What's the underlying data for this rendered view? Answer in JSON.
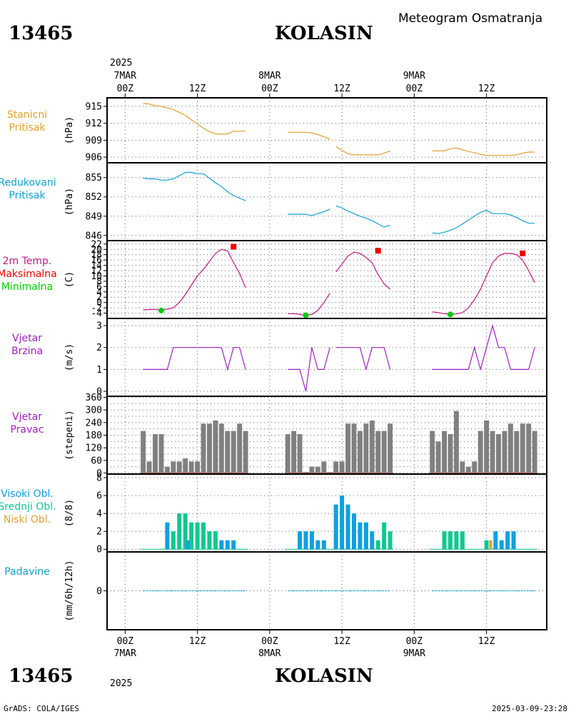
{
  "header": {
    "station_id": "13465",
    "station_name": "KOLASIN",
    "subtitle": "Meteogram Osmatranja"
  },
  "footer": {
    "station_id": "13465",
    "station_name": "KOLASIN",
    "credit": "GrADS: COLA/IGES",
    "timestamp": "2025-03-09-23:28"
  },
  "time_axis": {
    "top_year": "2025",
    "bottom_year": "2025",
    "ticks": [
      {
        "hour": 0,
        "hour_label": "00Z",
        "date_label": "7MAR"
      },
      {
        "hour": 12,
        "hour_label": "12Z",
        "date_label": ""
      },
      {
        "hour": 24,
        "hour_label": "00Z",
        "date_label": "8MAR"
      },
      {
        "hour": 36,
        "hour_label": "12Z",
        "date_label": ""
      },
      {
        "hour": 48,
        "hour_label": "00Z",
        "date_label": "9MAR"
      },
      {
        "hour": 60,
        "hour_label": "12Z",
        "date_label": ""
      }
    ],
    "range_hours": [
      -3,
      70
    ]
  },
  "colors": {
    "pressure_station": "#e0a030",
    "pressure_reduced": "#10a0d0",
    "temp": "#c01880",
    "temp_max": "#ee0000",
    "temp_min": "#00cc00",
    "wind": "#a020c0",
    "wind_dir_bar": "#808080",
    "wind_dir_base": "#c04040",
    "cloud_high": "#10a0e0",
    "cloud_mid": "#10c890",
    "cloud_low": "#e0a030",
    "precip": "#10a0c0",
    "grid": "#606060"
  },
  "chart_data": [
    {
      "id": "station_pressure",
      "type": "line",
      "labels": [
        "Stanicni",
        "Pritisak"
      ],
      "unit": "(hPa)",
      "ylim": [
        905,
        916.5
      ],
      "yticks": [
        906,
        909,
        912,
        915
      ],
      "series": [
        {
          "x": [
            3,
            4,
            5,
            6,
            7,
            8,
            9,
            10,
            11,
            12,
            13,
            14,
            15,
            16,
            17,
            18,
            19,
            20
          ],
          "y": [
            915.5,
            915.4,
            915.1,
            915.0,
            914.7,
            914.4,
            913.9,
            913.4,
            912.6,
            911.9,
            911.1,
            910.5,
            910.1,
            910.1,
            910.1,
            910.6,
            910.6,
            910.6
          ]
        },
        {
          "x": [
            27,
            28,
            29,
            30,
            31,
            32,
            33,
            34
          ],
          "y": [
            910.4,
            910.4,
            910.4,
            910.4,
            910.3,
            910.0,
            909.6,
            909.2
          ]
        },
        {
          "x": [
            35,
            36,
            37,
            38,
            39,
            40,
            41,
            42,
            43,
            44
          ],
          "y": [
            907.9,
            907.2,
            906.6,
            906.4,
            906.4,
            906.4,
            906.4,
            906.4,
            906.7,
            907.1
          ]
        },
        {
          "x": [
            51,
            52,
            53,
            54,
            55,
            56,
            57,
            58,
            59,
            60,
            61,
            62,
            63,
            64,
            65,
            66,
            67,
            68
          ],
          "y": [
            907.1,
            907.1,
            907.1,
            907.5,
            907.6,
            907.3,
            907.0,
            906.8,
            906.5,
            906.3,
            906.3,
            906.3,
            906.3,
            906.3,
            906.4,
            906.7,
            906.9,
            906.9
          ]
        }
      ]
    },
    {
      "id": "reduced_pressure",
      "type": "line",
      "labels": [
        "Redukovani",
        "Pritisak"
      ],
      "unit": "(hPa)",
      "ylim": [
        845.2,
        857.3
      ],
      "yticks": [
        846,
        849,
        852,
        855
      ],
      "series": [
        {
          "x": [
            3,
            4,
            5,
            6,
            7,
            8,
            9,
            10,
            11,
            12,
            13,
            14,
            15,
            16,
            17,
            18,
            19,
            20
          ],
          "y": [
            854.9,
            854.8,
            854.8,
            854.6,
            854.6,
            854.8,
            855.3,
            855.8,
            855.8,
            855.6,
            855.6,
            854.9,
            854.2,
            853.6,
            852.8,
            852.2,
            851.8,
            851.4
          ]
        },
        {
          "x": [
            27,
            28,
            29,
            30,
            31,
            32,
            33,
            34
          ],
          "y": [
            849.3,
            849.3,
            849.3,
            849.3,
            849.1,
            849.4,
            849.7,
            850.1
          ]
        },
        {
          "x": [
            35,
            36,
            37,
            38,
            39,
            40,
            41,
            42,
            43,
            44
          ],
          "y": [
            850.6,
            850.3,
            849.8,
            849.4,
            849.0,
            848.7,
            848.3,
            847.8,
            847.3,
            847.6
          ]
        },
        {
          "x": [
            51,
            52,
            53,
            54,
            55,
            56,
            57,
            58,
            59,
            60,
            61,
            62,
            63,
            64,
            65,
            66,
            67,
            68
          ],
          "y": [
            846.4,
            846.3,
            846.5,
            846.8,
            847.2,
            847.8,
            848.4,
            849.0,
            849.6,
            849.9,
            849.4,
            849.4,
            849.4,
            849.2,
            848.8,
            848.3,
            847.9,
            847.9
          ]
        }
      ]
    },
    {
      "id": "temperature",
      "type": "line",
      "labels": [
        "2m Temp.",
        "Maksimalna",
        "Minimalna"
      ],
      "unit": "(C)",
      "ylim": [
        -6,
        22.5
      ],
      "yticks": [
        -4,
        -2,
        0,
        2,
        4,
        6,
        8,
        10,
        12,
        14,
        16,
        18,
        20,
        22
      ],
      "series": [
        {
          "x": [
            3,
            4,
            5,
            6,
            7,
            8,
            9,
            10,
            11,
            12,
            13,
            14,
            15,
            16,
            17,
            18,
            19,
            20
          ],
          "y": [
            -2.8,
            -2.6,
            -2.6,
            -2.8,
            -2.5,
            -2.0,
            0.0,
            3.0,
            6.5,
            10.0,
            12.5,
            15.5,
            18.5,
            20.0,
            19.5,
            15.0,
            11.0,
            5.5
          ]
        },
        {
          "x": [
            27,
            28,
            29,
            30,
            31,
            32,
            33,
            34
          ],
          "y": [
            -4.2,
            -4.2,
            -4.5,
            -4.8,
            -4.5,
            -3.0,
            0.0,
            3.5
          ]
        },
        {
          "x": [
            35,
            36,
            37,
            38,
            39,
            40,
            41,
            42,
            43,
            44
          ],
          "y": [
            11.5,
            14.5,
            17.5,
            19.0,
            18.5,
            17.0,
            15.0,
            10.5,
            7.0,
            5.0
          ]
        },
        {
          "x": [
            51,
            52,
            53,
            54,
            55,
            56,
            57,
            58,
            59,
            60,
            61,
            62,
            63,
            64,
            65,
            66,
            67,
            68
          ],
          "y": [
            -3.5,
            -3.8,
            -4.2,
            -4.5,
            -4.3,
            -3.8,
            -2.0,
            1.0,
            5.0,
            10.0,
            15.0,
            17.5,
            18.5,
            18.5,
            18.0,
            16.0,
            12.0,
            7.5
          ]
        }
      ],
      "max_points": [
        {
          "x": 18,
          "y": 21.0
        },
        {
          "x": 42,
          "y": 19.5
        },
        {
          "x": 66,
          "y": 18.5
        }
      ],
      "min_points": [
        {
          "x": 6,
          "y": -3.0
        },
        {
          "x": 30,
          "y": -4.8
        },
        {
          "x": 54,
          "y": -4.5
        }
      ]
    },
    {
      "id": "wind_speed",
      "type": "line",
      "labels": [
        "Vjetar",
        "Brzina"
      ],
      "unit": "(m/s)",
      "ylim": [
        0,
        3.1
      ],
      "yticks": [
        0,
        1,
        2,
        3
      ],
      "series": [
        {
          "x": [
            3,
            4,
            5,
            6,
            7,
            8,
            9,
            10,
            11,
            12,
            13,
            14,
            15,
            16,
            17,
            18,
            19,
            20
          ],
          "y": [
            1,
            1,
            1,
            1,
            1,
            2,
            2,
            2,
            2,
            2,
            2,
            2,
            2,
            2,
            1,
            2,
            2,
            1
          ]
        },
        {
          "x": [
            27,
            28,
            29,
            30,
            31,
            32,
            33,
            34
          ],
          "y": [
            1,
            1,
            1,
            0,
            2,
            1,
            1,
            2
          ]
        },
        {
          "x": [
            35,
            36,
            37,
            38,
            39,
            40,
            41,
            42,
            43,
            44
          ],
          "y": [
            2,
            2,
            2,
            2,
            2,
            1,
            2,
            2,
            2,
            1
          ]
        },
        {
          "x": [
            51,
            52,
            53,
            54,
            55,
            56,
            57,
            58,
            59,
            60,
            61,
            62,
            63,
            64,
            65,
            66,
            67,
            68
          ],
          "y": [
            1,
            1,
            1,
            1,
            1,
            1,
            1,
            2,
            1,
            2,
            3,
            2,
            2,
            1,
            1,
            1,
            1,
            2
          ]
        }
      ]
    },
    {
      "id": "wind_direction",
      "type": "bar",
      "labels": [
        "Vjetar",
        "Pravac"
      ],
      "unit": "(stepeni)",
      "ylim": [
        -5,
        365
      ],
      "yticks": [
        0,
        60,
        120,
        180,
        240,
        300,
        360
      ],
      "yticks_odd": [
        30,
        90,
        150,
        210,
        270,
        330
      ],
      "x": [
        3,
        4,
        5,
        6,
        7,
        8,
        9,
        10,
        11,
        12,
        13,
        14,
        15,
        16,
        17,
        18,
        19,
        20,
        27,
        28,
        29,
        30,
        31,
        32,
        33,
        34,
        35,
        36,
        37,
        38,
        39,
        40,
        41,
        42,
        43,
        44,
        51,
        52,
        53,
        54,
        55,
        56,
        57,
        58,
        59,
        60,
        61,
        62,
        63,
        64,
        65,
        66,
        67,
        68
      ],
      "values": [
        200,
        55,
        185,
        185,
        30,
        55,
        55,
        70,
        55,
        55,
        235,
        235,
        250,
        235,
        200,
        200,
        235,
        200,
        185,
        200,
        185,
        5,
        30,
        30,
        55,
        5,
        55,
        55,
        235,
        235,
        200,
        235,
        250,
        200,
        200,
        235,
        200,
        150,
        200,
        185,
        295,
        55,
        30,
        55,
        200,
        250,
        200,
        185,
        200,
        235,
        200,
        235,
        235,
        200
      ]
    },
    {
      "id": "cloud_cover",
      "type": "bar",
      "labels": [
        "Visoki Obl.",
        "Srednji Obl.",
        "Niski Obl."
      ],
      "unit": "(8/8)",
      "ylim": [
        -0.3,
        8.4
      ],
      "yticks": [
        0,
        2,
        4,
        6,
        8
      ],
      "bars": [
        {
          "x": 7.0,
          "kind": "high",
          "value": 3
        },
        {
          "x": 8.0,
          "kind": "mid",
          "value": 2
        },
        {
          "x": 9.0,
          "kind": "mid",
          "value": 4
        },
        {
          "x": 10.0,
          "kind": "mid",
          "value": 4
        },
        {
          "x": 10.5,
          "kind": "high",
          "value": 1
        },
        {
          "x": 11.0,
          "kind": "mid",
          "value": 3
        },
        {
          "x": 12.0,
          "kind": "mid",
          "value": 3
        },
        {
          "x": 13.0,
          "kind": "mid",
          "value": 3
        },
        {
          "x": 14.0,
          "kind": "mid",
          "value": 2
        },
        {
          "x": 15.0,
          "kind": "mid",
          "value": 2
        },
        {
          "x": 16.0,
          "kind": "high",
          "value": 1
        },
        {
          "x": 17.0,
          "kind": "high",
          "value": 1
        },
        {
          "x": 18.0,
          "kind": "high",
          "value": 1
        },
        {
          "x": 29.0,
          "kind": "high",
          "value": 2
        },
        {
          "x": 30.0,
          "kind": "high",
          "value": 2
        },
        {
          "x": 31.0,
          "kind": "high",
          "value": 2
        },
        {
          "x": 32.0,
          "kind": "high",
          "value": 1
        },
        {
          "x": 33.0,
          "kind": "high",
          "value": 1
        },
        {
          "x": 35.0,
          "kind": "high",
          "value": 5
        },
        {
          "x": 36.0,
          "kind": "high",
          "value": 6
        },
        {
          "x": 37.0,
          "kind": "high",
          "value": 5
        },
        {
          "x": 38.0,
          "kind": "high",
          "value": 4
        },
        {
          "x": 39.0,
          "kind": "high",
          "value": 3
        },
        {
          "x": 40.0,
          "kind": "high",
          "value": 3
        },
        {
          "x": 41.0,
          "kind": "high",
          "value": 2
        },
        {
          "x": 42.0,
          "kind": "mid",
          "value": 1
        },
        {
          "x": 43.0,
          "kind": "mid",
          "value": 3
        },
        {
          "x": 44.0,
          "kind": "mid",
          "value": 2
        },
        {
          "x": 53.0,
          "kind": "mid",
          "value": 2
        },
        {
          "x": 54.0,
          "kind": "mid",
          "value": 2
        },
        {
          "x": 55.0,
          "kind": "mid",
          "value": 2
        },
        {
          "x": 56.0,
          "kind": "mid",
          "value": 2
        },
        {
          "x": 60.0,
          "kind": "mid",
          "value": 1
        },
        {
          "x": 60.7,
          "kind": "low",
          "value": 1
        },
        {
          "x": 61.5,
          "kind": "high",
          "value": 2
        },
        {
          "x": 62.5,
          "kind": "high",
          "value": 1
        },
        {
          "x": 63.5,
          "kind": "high",
          "value": 2
        },
        {
          "x": 64.5,
          "kind": "high",
          "value": 2
        }
      ]
    },
    {
      "id": "precipitation",
      "type": "line",
      "labels": [
        "Padavine"
      ],
      "unit": "(mm/6h/12h)",
      "ylim": [
        -1,
        1
      ],
      "yticks": [
        0
      ],
      "series": [
        {
          "x": [
            3,
            20
          ],
          "y": [
            0,
            0
          ]
        },
        {
          "x": [
            27,
            44
          ],
          "y": [
            0,
            0
          ]
        },
        {
          "x": [
            51,
            68
          ],
          "y": [
            0,
            0
          ]
        }
      ]
    }
  ]
}
